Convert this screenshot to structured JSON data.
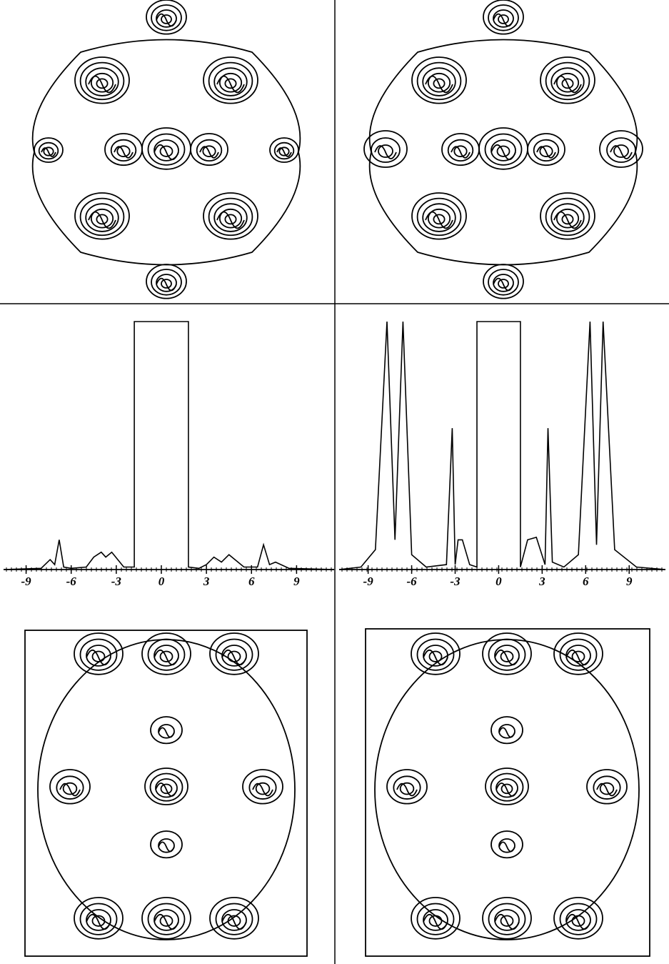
{
  "chart_data": [
    {
      "type": "line",
      "x": [
        -10.5,
        -8,
        -7.4,
        -7.1,
        -6.8,
        -6.5,
        -6,
        -5,
        -4.5,
        -4,
        -3.7,
        -3.3,
        -2.5,
        -1.8,
        -1.8,
        1.8,
        1.8,
        2.5,
        3,
        3.5,
        4,
        4.5,
        5.5,
        6.4,
        6.8,
        7.2,
        7.6,
        8.5,
        11.5
      ],
      "values": [
        0,
        0.5,
        4,
        2,
        12,
        1,
        0.5,
        1,
        5,
        7,
        5,
        7,
        1,
        1,
        100,
        100,
        1,
        0.5,
        2,
        5,
        3,
        6,
        1,
        1,
        10,
        2,
        3,
        0.5,
        0
      ],
      "color": "#000000",
      "xlim": [
        -10.5,
        11.5
      ],
      "ylim": [
        0,
        100
      ],
      "xticks": [
        -9,
        -6,
        -3,
        0,
        3,
        6,
        9
      ]
    },
    {
      "type": "line",
      "x": [
        -11,
        -9.5,
        -8.5,
        -7.7,
        -7.15,
        -6.6,
        -6,
        -5,
        -3.6,
        -3.2,
        -3,
        -2.8,
        -2.5,
        -2,
        -1.5,
        -1.5,
        1.5,
        1.5,
        2,
        2.6,
        3.2,
        3.4,
        3.7,
        4.5,
        5.5,
        6.3,
        6.75,
        7.2,
        8,
        9.5,
        11.5
      ],
      "values": [
        0,
        1,
        8,
        100,
        12,
        100,
        6,
        1,
        2,
        57,
        2,
        12,
        12,
        2,
        1,
        100,
        100,
        1,
        12,
        13,
        2,
        57,
        3,
        1,
        6,
        100,
        10,
        100,
        8,
        1,
        0
      ],
      "color": "#000000",
      "xlim": [
        -11,
        11.5
      ],
      "ylim": [
        0,
        100
      ],
      "xticks": [
        -9,
        -6,
        -3,
        0,
        3,
        6,
        9
      ]
    }
  ]
}
